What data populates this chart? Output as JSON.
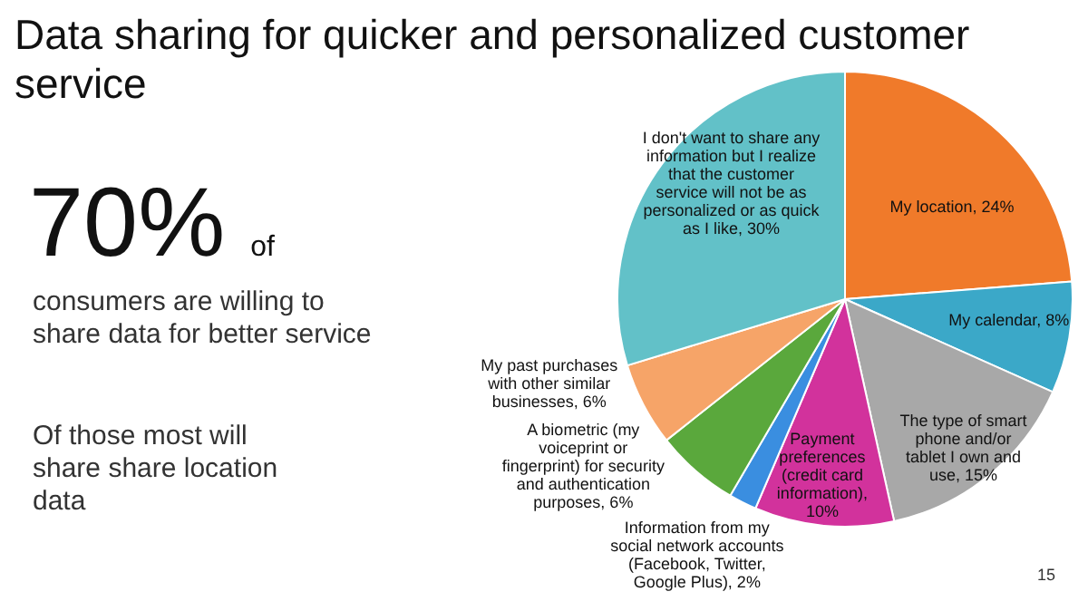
{
  "chart_data": {
    "type": "pie",
    "title": "Data sharing for quicker and personalized customer service",
    "categories": [
      "My location, 24%",
      "My calendar, 8%",
      "The type of smart phone and/or tablet I own and use, 15%",
      "Payment preferences (credit card information), 10%",
      "Information from my social network accounts (Facebook, Twitter, Google Plus), 2%",
      "A biometric (my voiceprint or fingerprint) for security and authentication purposes, 6%",
      "My past purchases with other similar businesses, 6%",
      "I don't want to share any information but I realize that the customer service will not be as personalized or as quick as I like, 30%"
    ],
    "values": [
      24,
      8,
      15,
      10,
      2,
      6,
      6,
      30
    ],
    "colors": [
      "#f07a2a",
      "#3ba8c8",
      "#a8a8a8",
      "#d2329c",
      "#3a8ee0",
      "#5aa83c",
      "#f6a468",
      "#62c1c8"
    ],
    "annotations": [
      "70%",
      "of",
      "consumers are willing to share data for better service",
      "Of those most will share share location data",
      "15"
    ],
    "legend": false
  }
}
